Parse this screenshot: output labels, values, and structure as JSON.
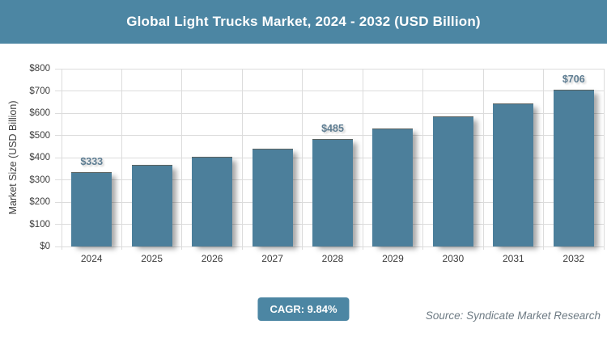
{
  "header": {
    "title": "Global Light Trucks Market, 2024 - 2032 (USD Billion)"
  },
  "chart_data": {
    "type": "bar",
    "title": "Global Light Trucks Market, 2024 - 2032 (USD Billion)",
    "categories": [
      "2024",
      "2025",
      "2026",
      "2027",
      "2028",
      "2029",
      "2030",
      "2031",
      "2032"
    ],
    "values": [
      333,
      366,
      402,
      441,
      485,
      532,
      585,
      642,
      706
    ],
    "bar_labels": [
      "$333",
      null,
      null,
      null,
      "$485",
      null,
      null,
      null,
      "$706"
    ],
    "xlabel": "",
    "ylabel": "Market Size (USD Billion)",
    "ylim": [
      0,
      800
    ],
    "y_tick_step": 100,
    "y_ticks": [
      "$0",
      "$100",
      "$200",
      "$300",
      "$400",
      "$500",
      "$600",
      "$700",
      "$800"
    ],
    "grid": "horizontal and vertical category boundaries",
    "legend": false,
    "colors": {
      "header_bg": "#4C86A3",
      "title_text": "#FFFFFF",
      "bar": "#4C7F9B",
      "value_text": "#5E7D92",
      "axis_text": "#3D3D3D",
      "grid": "#DCDCDC",
      "badge_text": "#FFFFFF",
      "source_text": "#6E7B84"
    }
  },
  "footer": {
    "cagr_label": "CAGR: 9.84%",
    "source": "Source: Syndicate Market Research"
  }
}
